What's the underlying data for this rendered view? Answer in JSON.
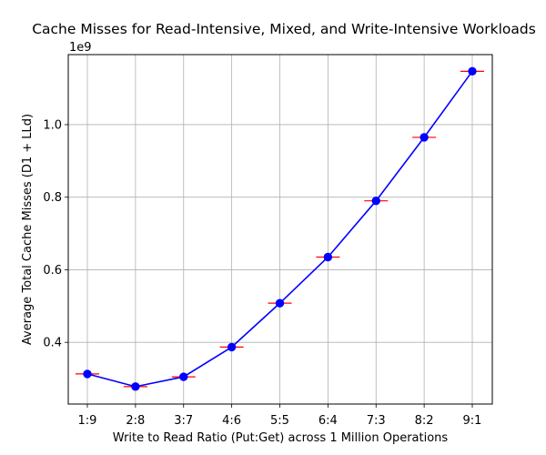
{
  "chart_data": {
    "type": "line",
    "title": "Cache Misses for Read-Intensive, Mixed, and Write-Intensive Workloads",
    "xlabel": "Write to Read Ratio (Put:Get) across 1 Million Operations",
    "ylabel": "Average Total Cache Misses (D1 + LLd)",
    "y_offset_label": "1e9",
    "categories": [
      "1:9",
      "2:8",
      "3:7",
      "4:6",
      "5:5",
      "6:4",
      "7:3",
      "8:2",
      "9:1"
    ],
    "series": [
      {
        "values": [
          313000000,
          278000000,
          305000000,
          387000000,
          508000000,
          635000000,
          790000000,
          965000000,
          1147000000
        ],
        "color": "#0000ff",
        "marker": "circle",
        "error_bar_color": "#ff0000"
      }
    ],
    "ylim": [
      230000000,
      1193000000
    ],
    "yticks": [
      400000000,
      600000000,
      800000000,
      1000000000
    ],
    "ytick_labels": [
      "0.4",
      "0.6",
      "0.8",
      "1.0"
    ],
    "grid": true,
    "legend": "none"
  }
}
